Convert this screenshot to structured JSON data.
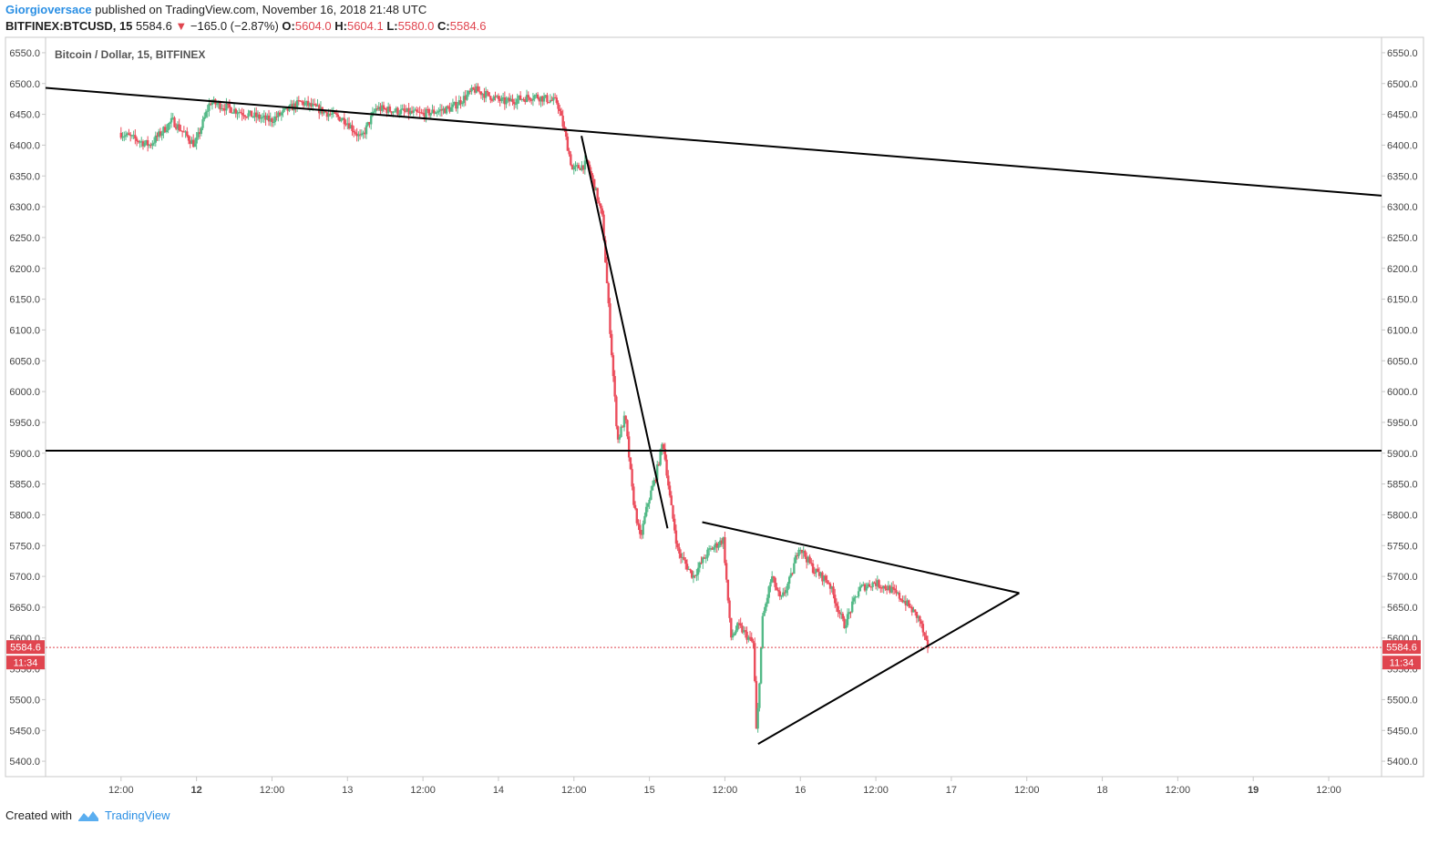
{
  "header": {
    "author": "Giorgioversace",
    "published": "published on TradingView.com, November 16, 2018 21:48 UTC",
    "symbol": "BITFINEX:BTCUSD, 15",
    "last": "5584.6",
    "change": "−165.0 (−2.87%)",
    "o_label": "O:",
    "o": "5604.0",
    "h_label": "H:",
    "h": "5604.1",
    "l_label": "L:",
    "l": "5580.0",
    "c_label": "C:",
    "c": "5584.6"
  },
  "footer": {
    "created_with": "Created with",
    "brand": "TradingView"
  },
  "colors": {
    "up": "#53b987",
    "down": "#eb4d5c",
    "line": "#000000",
    "price_tag": "#e0454f"
  },
  "chart_data": {
    "type": "candlestick",
    "title": "Bitcoin / Dollar, 15, BITFINEX",
    "ylim": [
      5375,
      6575
    ],
    "yticks": [
      "6550.0",
      "6500.0",
      "6450.0",
      "6400.0",
      "6350.0",
      "6300.0",
      "6250.0",
      "6200.0",
      "6150.0",
      "6100.0",
      "6050.0",
      "6000.0",
      "5950.0",
      "5900.0",
      "5850.0",
      "5800.0",
      "5750.0",
      "5700.0",
      "5650.0",
      "5600.0",
      "5550.0",
      "5500.0",
      "5450.0",
      "5400.0"
    ],
    "xticks": [
      {
        "label": "12:00",
        "t": 0.5,
        "bold": false
      },
      {
        "label": "12",
        "t": 1.0,
        "bold": true
      },
      {
        "label": "12:00",
        "t": 1.5,
        "bold": false
      },
      {
        "label": "13",
        "t": 2.0,
        "bold": false
      },
      {
        "label": "12:00",
        "t": 2.5,
        "bold": false
      },
      {
        "label": "14",
        "t": 3.0,
        "bold": false
      },
      {
        "label": "12:00",
        "t": 3.5,
        "bold": false
      },
      {
        "label": "15",
        "t": 4.0,
        "bold": false
      },
      {
        "label": "12:00",
        "t": 4.5,
        "bold": false
      },
      {
        "label": "16",
        "t": 5.0,
        "bold": false
      },
      {
        "label": "12:00",
        "t": 5.5,
        "bold": false
      },
      {
        "label": "17",
        "t": 6.0,
        "bold": false
      },
      {
        "label": "12:00",
        "t": 6.5,
        "bold": false
      },
      {
        "label": "18",
        "t": 7.0,
        "bold": false
      },
      {
        "label": "12:00",
        "t": 7.5,
        "bold": false
      },
      {
        "label": "19",
        "t": 8.0,
        "bold": true
      },
      {
        "label": "12:00",
        "t": 8.5,
        "bold": false
      }
    ],
    "last_price": 5584.6,
    "last_price_label": "5584.6",
    "countdown_label": "11:34",
    "price_path": [
      [
        0.5,
        6420
      ],
      [
        0.7,
        6400
      ],
      [
        0.85,
        6440
      ],
      [
        1.0,
        6400
      ],
      [
        1.1,
        6470
      ],
      [
        1.35,
        6450
      ],
      [
        1.5,
        6440
      ],
      [
        1.7,
        6470
      ],
      [
        2.0,
        6440
      ],
      [
        2.1,
        6410
      ],
      [
        2.2,
        6460
      ],
      [
        2.5,
        6450
      ],
      [
        2.7,
        6460
      ],
      [
        2.85,
        6490
      ],
      [
        3.05,
        6470
      ],
      [
        3.25,
        6480
      ],
      [
        3.4,
        6470
      ],
      [
        3.45,
        6420
      ],
      [
        3.5,
        6360
      ],
      [
        3.6,
        6370
      ],
      [
        3.65,
        6330
      ],
      [
        3.7,
        6280
      ],
      [
        3.75,
        6100
      ],
      [
        3.8,
        5920
      ],
      [
        3.85,
        5960
      ],
      [
        3.9,
        5830
      ],
      [
        3.95,
        5760
      ],
      [
        4.0,
        5820
      ],
      [
        4.05,
        5860
      ],
      [
        4.1,
        5920
      ],
      [
        4.15,
        5820
      ],
      [
        4.2,
        5740
      ],
      [
        4.3,
        5700
      ],
      [
        4.4,
        5740
      ],
      [
        4.5,
        5760
      ],
      [
        4.55,
        5600
      ],
      [
        4.6,
        5620
      ],
      [
        4.7,
        5590
      ],
      [
        4.72,
        5440
      ],
      [
        4.76,
        5630
      ],
      [
        4.82,
        5700
      ],
      [
        4.88,
        5660
      ],
      [
        4.95,
        5700
      ],
      [
        5.0,
        5750
      ],
      [
        5.1,
        5710
      ],
      [
        5.2,
        5690
      ],
      [
        5.3,
        5620
      ],
      [
        5.4,
        5680
      ],
      [
        5.5,
        5690
      ],
      [
        5.6,
        5680
      ],
      [
        5.7,
        5660
      ],
      [
        5.8,
        5630
      ],
      [
        5.85,
        5584.6
      ]
    ],
    "trendlines": [
      {
        "name": "long-descending-resistance",
        "from": [
          0.0,
          6493
        ],
        "to": [
          8.85,
          6318
        ]
      },
      {
        "name": "steep-drop-line",
        "from": [
          3.55,
          6415
        ],
        "to": [
          4.12,
          5778
        ]
      },
      {
        "name": "horizontal-support",
        "from": [
          0.0,
          5904
        ],
        "to": [
          8.85,
          5904
        ]
      },
      {
        "name": "triangle-upper",
        "from": [
          4.35,
          5788
        ],
        "to": [
          6.45,
          5673
        ]
      },
      {
        "name": "triangle-lower",
        "from": [
          4.72,
          5428
        ],
        "to": [
          6.45,
          5673
        ]
      }
    ]
  }
}
